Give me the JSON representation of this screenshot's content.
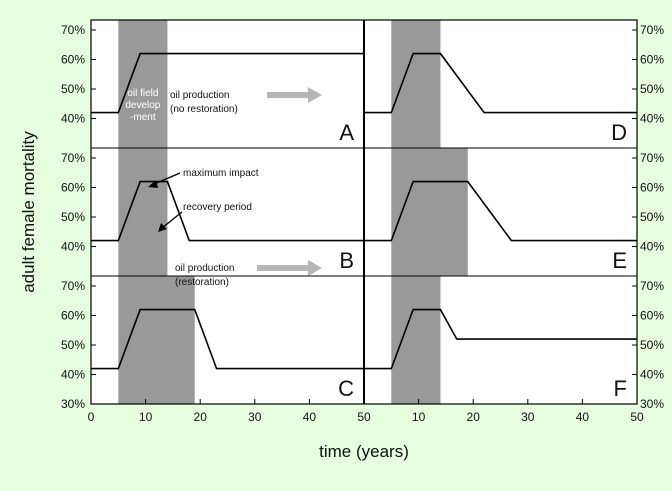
{
  "chart_data": {
    "type": "line",
    "xlabel": "time (years)",
    "ylabel": "adult female mortality",
    "xlim": [
      0,
      50
    ],
    "ylim": [
      30,
      70
    ],
    "x_ticks": [
      "0",
      "10",
      "20",
      "30",
      "40",
      "50"
    ],
    "y_ticks": [
      "30%",
      "40%",
      "50%",
      "60%",
      "70%"
    ],
    "colors": {
      "shade": "#999999",
      "line": "#000000",
      "arrow": "#b5b5b5",
      "background": "#e6fde0",
      "panel": "#ffffff"
    },
    "panels": [
      {
        "label": "A",
        "development_period": [
          5,
          14
        ],
        "x": [
          0,
          5,
          9,
          50
        ],
        "y": [
          42,
          42,
          62,
          62
        ],
        "annotations": {
          "development": [
            "oil field",
            "develop",
            "-ment"
          ],
          "production": [
            "oil production",
            "(no restoration)"
          ]
        }
      },
      {
        "label": "B",
        "development_period": [
          5,
          14
        ],
        "x": [
          0,
          5,
          9,
          14,
          18,
          50
        ],
        "y": [
          42,
          42,
          62,
          62,
          42,
          42
        ],
        "annotations": {
          "peak": "maximum impact",
          "recovery": "recovery period",
          "production": [
            "oil production",
            "(restoration)"
          ]
        }
      },
      {
        "label": "C",
        "development_period": [
          5,
          19
        ],
        "x": [
          0,
          5,
          9,
          19,
          23,
          50
        ],
        "y": [
          42,
          42,
          62,
          62,
          42,
          42
        ]
      },
      {
        "label": "D",
        "development_period": [
          5,
          14
        ],
        "x": [
          0,
          5,
          9,
          14,
          22,
          50
        ],
        "y": [
          42,
          42,
          62,
          62,
          42,
          42
        ]
      },
      {
        "label": "E",
        "development_period": [
          5,
          19
        ],
        "x": [
          0,
          5,
          9,
          19,
          27,
          50
        ],
        "y": [
          42,
          42,
          62,
          62,
          42,
          42
        ]
      },
      {
        "label": "F",
        "development_period": [
          5,
          14
        ],
        "x": [
          0,
          5,
          9,
          14,
          17,
          50
        ],
        "y": [
          42,
          42,
          62,
          62,
          52,
          52
        ]
      }
    ]
  }
}
